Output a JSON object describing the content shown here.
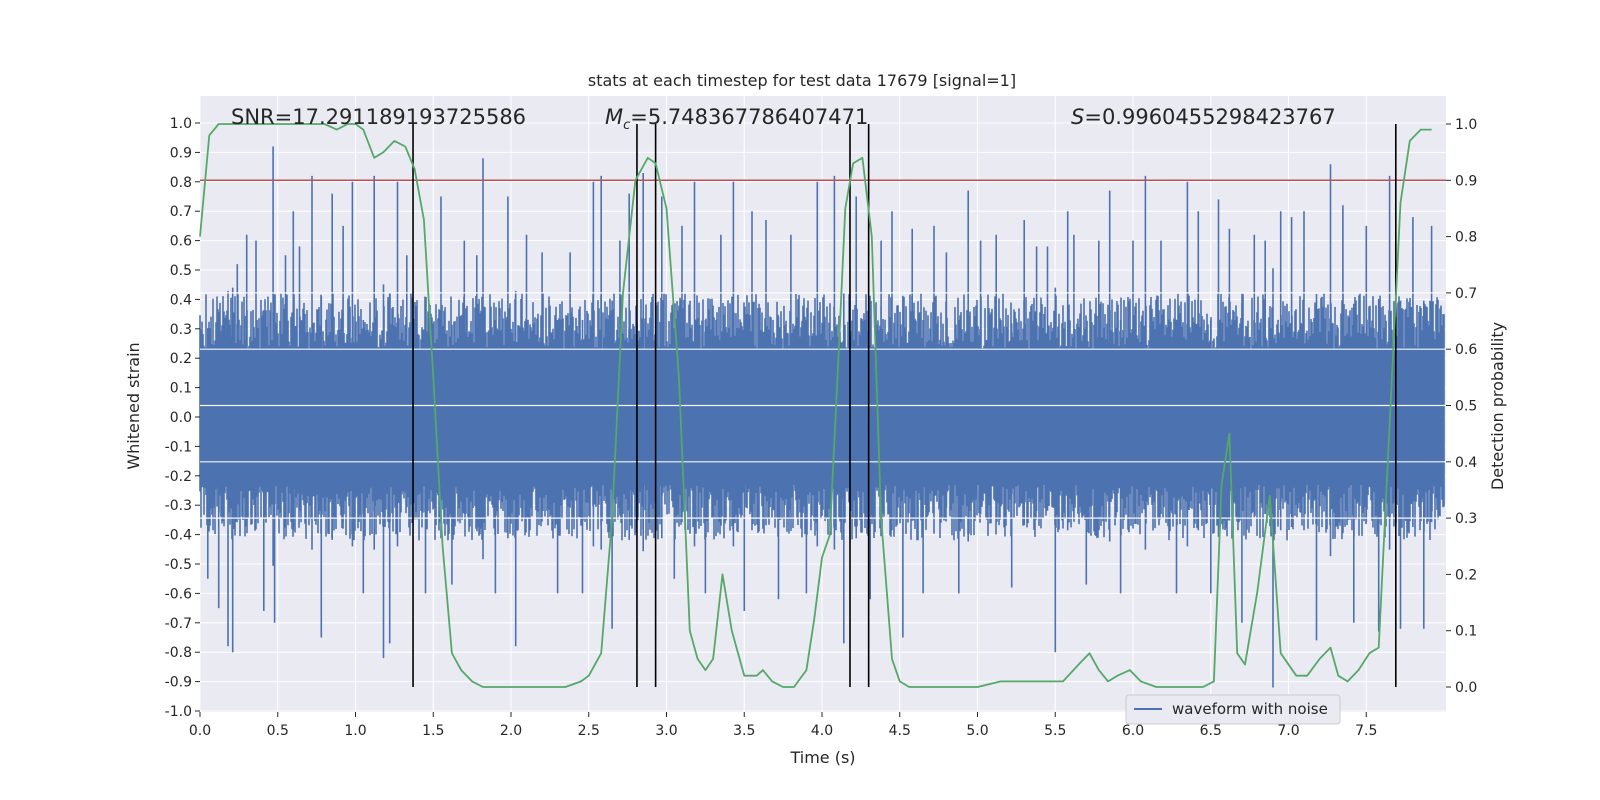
{
  "chart_data": {
    "type": "line",
    "title": "stats at each timestep for test data 17679 [signal=1]",
    "xlabel": "Time (s)",
    "ylabel": "Whitened strain",
    "ylabel_right": "Detection probability",
    "xlim": [
      0,
      8
    ],
    "ylim": [
      -1.05,
      1.05
    ],
    "ylim_right": [
      -0.05,
      1.05
    ],
    "grid": true,
    "x_ticks": [
      "0.0",
      "0.5",
      "1.0",
      "1.5",
      "2.0",
      "2.5",
      "3.0",
      "3.5",
      "4.0",
      "4.5",
      "5.0",
      "5.5",
      "6.0",
      "6.5",
      "7.0",
      "7.5"
    ],
    "y_ticks": [
      "1.0",
      "0.9",
      "0.8",
      "0.7",
      "0.6",
      "0.5",
      "0.4",
      "0.3",
      "0.2",
      "0.1",
      "0.0",
      "-0.1",
      "-0.2",
      "-0.3",
      "-0.4",
      "-0.5",
      "-0.6",
      "-0.7",
      "-0.8",
      "-0.9",
      "-1.0"
    ],
    "y_ticks_right": [
      "1.0",
      "0.9",
      "0.8",
      "0.7",
      "0.6",
      "0.5",
      "0.4",
      "0.3",
      "0.2",
      "0.1",
      "0.0"
    ],
    "annotations": {
      "snr": "SNR=17.291189193725586",
      "mc_symbol": "M",
      "mc_sub": "c",
      "mc_value": "=5.748367786407471",
      "s_symbol": "S",
      "s_value": "=0.9960455298423767"
    },
    "legend": {
      "label": "waveform with noise",
      "position": "lower-right"
    },
    "threshold": {
      "value": 0.9,
      "axis": "right",
      "color": "#c44e52"
    },
    "vlines": [
      1.37,
      2.81,
      2.93,
      4.18,
      4.3,
      7.69
    ],
    "vline_range": [
      0,
      1
    ],
    "series": [
      {
        "name": "waveform with noise",
        "color": "#4c72b0",
        "axis": "left",
        "band": 0.42,
        "spikes": [
          [
            0.05,
            -0.55
          ],
          [
            0.12,
            -0.65
          ],
          [
            0.18,
            -0.78
          ],
          [
            0.21,
            -0.8
          ],
          [
            0.24,
            0.52
          ],
          [
            0.3,
            0.62
          ],
          [
            0.36,
            0.6
          ],
          [
            0.41,
            -0.66
          ],
          [
            0.47,
            0.92
          ],
          [
            0.48,
            -0.7
          ],
          [
            0.55,
            0.55
          ],
          [
            0.6,
            0.7
          ],
          [
            0.64,
            0.58
          ],
          [
            0.72,
            0.82
          ],
          [
            0.78,
            -0.75
          ],
          [
            0.85,
            0.76
          ],
          [
            0.92,
            0.65
          ],
          [
            0.98,
            0.8
          ],
          [
            1.05,
            -0.6
          ],
          [
            1.12,
            0.82
          ],
          [
            1.18,
            -0.82
          ],
          [
            1.22,
            -0.77
          ],
          [
            1.27,
            0.8
          ],
          [
            1.33,
            0.55
          ],
          [
            1.45,
            -0.6
          ],
          [
            1.55,
            0.75
          ],
          [
            1.62,
            -0.57
          ],
          [
            1.7,
            0.6
          ],
          [
            1.78,
            0.55
          ],
          [
            1.82,
            0.88
          ],
          [
            1.9,
            -0.6
          ],
          [
            1.98,
            0.75
          ],
          [
            2.03,
            -0.78
          ],
          [
            2.1,
            0.62
          ],
          [
            2.2,
            0.56
          ],
          [
            2.3,
            -0.6
          ],
          [
            2.38,
            0.56
          ],
          [
            2.46,
            -0.6
          ],
          [
            2.53,
            0.8
          ],
          [
            2.58,
            0.82
          ],
          [
            2.65,
            -0.72
          ],
          [
            2.7,
            0.6
          ],
          [
            2.76,
            0.76
          ],
          [
            2.85,
            0.83
          ],
          [
            2.97,
            0.75
          ],
          [
            3.05,
            -0.55
          ],
          [
            3.1,
            0.65
          ],
          [
            3.18,
            0.8
          ],
          [
            3.25,
            -0.6
          ],
          [
            3.35,
            0.62
          ],
          [
            3.43,
            0.8
          ],
          [
            3.5,
            -0.66
          ],
          [
            3.55,
            0.7
          ],
          [
            3.64,
            0.67
          ],
          [
            3.72,
            -0.62
          ],
          [
            3.8,
            0.62
          ],
          [
            3.9,
            -0.6
          ],
          [
            3.97,
            0.8
          ],
          [
            4.08,
            0.82
          ],
          [
            4.14,
            -0.77
          ],
          [
            4.22,
            0.75
          ],
          [
            4.31,
            -0.62
          ],
          [
            4.38,
            0.6
          ],
          [
            4.45,
            0.7
          ],
          [
            4.52,
            -0.75
          ],
          [
            4.58,
            0.64
          ],
          [
            4.65,
            -0.6
          ],
          [
            4.72,
            0.65
          ],
          [
            4.8,
            0.56
          ],
          [
            4.88,
            -0.6
          ],
          [
            4.94,
            0.77
          ],
          [
            5.02,
            0.6
          ],
          [
            5.12,
            0.62
          ],
          [
            5.22,
            -0.58
          ],
          [
            5.3,
            0.67
          ],
          [
            5.38,
            0.58
          ],
          [
            5.45,
            0.58
          ],
          [
            5.5,
            -0.8
          ],
          [
            5.58,
            0.7
          ],
          [
            5.62,
            0.62
          ],
          [
            5.7,
            -0.57
          ],
          [
            5.78,
            0.6
          ],
          [
            5.85,
            0.77
          ],
          [
            5.92,
            -0.6
          ],
          [
            6.0,
            0.6
          ],
          [
            6.08,
            0.82
          ],
          [
            6.18,
            0.6
          ],
          [
            6.28,
            -0.6
          ],
          [
            6.35,
            0.8
          ],
          [
            6.42,
            0.7
          ],
          [
            6.5,
            -0.6
          ],
          [
            6.55,
            0.74
          ],
          [
            6.62,
            0.64
          ],
          [
            6.7,
            -0.7
          ],
          [
            6.78,
            0.62
          ],
          [
            6.85,
            0.6
          ],
          [
            6.9,
            -0.92
          ],
          [
            6.95,
            0.7
          ],
          [
            7.02,
            0.68
          ],
          [
            7.1,
            0.7
          ],
          [
            7.18,
            -0.76
          ],
          [
            7.27,
            0.86
          ],
          [
            7.35,
            0.72
          ],
          [
            7.42,
            -0.7
          ],
          [
            7.5,
            0.65
          ],
          [
            7.58,
            -0.73
          ],
          [
            7.65,
            0.82
          ],
          [
            7.72,
            -0.72
          ],
          [
            7.8,
            0.68
          ],
          [
            7.87,
            -0.72
          ],
          [
            7.92,
            0.65
          ]
        ]
      },
      {
        "name": "Detection probability",
        "color": "#55a868",
        "axis": "right",
        "x": [
          0.0,
          0.06,
          0.12,
          0.2,
          0.35,
          0.5,
          0.65,
          0.8,
          0.88,
          0.95,
          1.0,
          1.05,
          1.12,
          1.18,
          1.25,
          1.32,
          1.38,
          1.44,
          1.5,
          1.56,
          1.62,
          1.68,
          1.75,
          1.82,
          2.0,
          2.2,
          2.35,
          2.45,
          2.5,
          2.58,
          2.65,
          2.72,
          2.8,
          2.88,
          2.93,
          3.0,
          3.08,
          3.15,
          3.2,
          3.25,
          3.3,
          3.36,
          3.42,
          3.5,
          3.58,
          3.62,
          3.68,
          3.75,
          3.82,
          3.9,
          3.95,
          4.0,
          4.05,
          4.1,
          4.15,
          4.2,
          4.26,
          4.32,
          4.38,
          4.45,
          4.5,
          4.56,
          4.62,
          4.75,
          5.0,
          5.15,
          5.25,
          5.4,
          5.55,
          5.65,
          5.72,
          5.78,
          5.84,
          5.9,
          5.98,
          6.05,
          6.15,
          6.3,
          6.45,
          6.52,
          6.57,
          6.62,
          6.67,
          6.72,
          6.8,
          6.88,
          6.95,
          7.05,
          7.12,
          7.2,
          7.27,
          7.32,
          7.38,
          7.45,
          7.52,
          7.58,
          7.66,
          7.72,
          7.78,
          7.85,
          7.92
        ],
        "values": [
          0.8,
          0.98,
          1.0,
          1.0,
          1.0,
          1.0,
          1.0,
          1.0,
          0.99,
          1.0,
          1.0,
          0.99,
          0.94,
          0.95,
          0.97,
          0.96,
          0.92,
          0.83,
          0.55,
          0.25,
          0.06,
          0.03,
          0.01,
          0.0,
          0.0,
          0.0,
          0.0,
          0.01,
          0.02,
          0.06,
          0.3,
          0.7,
          0.9,
          0.94,
          0.93,
          0.85,
          0.55,
          0.1,
          0.05,
          0.03,
          0.05,
          0.2,
          0.1,
          0.02,
          0.02,
          0.03,
          0.01,
          0.0,
          0.0,
          0.03,
          0.12,
          0.23,
          0.27,
          0.55,
          0.85,
          0.93,
          0.94,
          0.8,
          0.3,
          0.05,
          0.01,
          0.0,
          0.0,
          0.0,
          0.0,
          0.01,
          0.01,
          0.01,
          0.01,
          0.04,
          0.06,
          0.03,
          0.01,
          0.02,
          0.03,
          0.01,
          0.0,
          0.0,
          0.0,
          0.01,
          0.36,
          0.45,
          0.06,
          0.04,
          0.17,
          0.34,
          0.06,
          0.02,
          0.02,
          0.05,
          0.07,
          0.02,
          0.01,
          0.03,
          0.06,
          0.07,
          0.52,
          0.86,
          0.97,
          0.99,
          0.99
        ]
      }
    ]
  }
}
